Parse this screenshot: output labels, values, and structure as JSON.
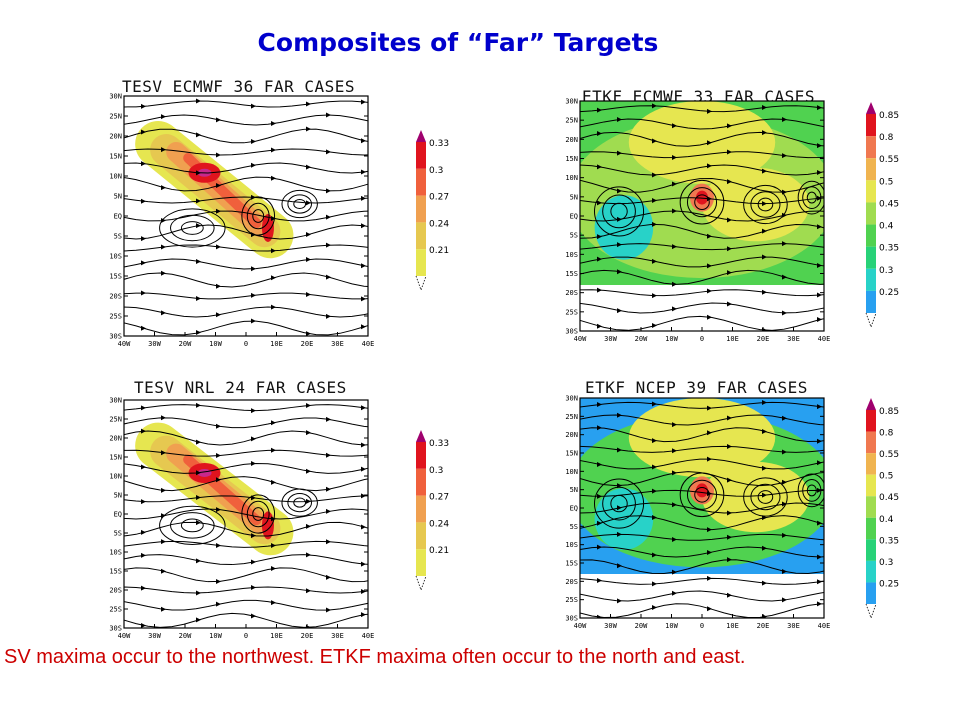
{
  "title": "Composites of “Far” Targets",
  "caption": "SV maxima occur to the northwest.  ETKF maxima often occur to the north and east.",
  "lat_labels": [
    "30N",
    "25N",
    "20N",
    "15N",
    "10N",
    "5N",
    "EQ",
    "5S",
    "10S",
    "15S",
    "20S",
    "25S",
    "30S"
  ],
  "lon_labels": [
    "40W",
    "30W",
    "20W",
    "10W",
    "0",
    "10E",
    "20E",
    "30E",
    "40E"
  ],
  "panels": [
    {
      "id": "tesv-ecmwf",
      "title": "TESV ECMWF 36 FAR CASES",
      "type": "tesv"
    },
    {
      "id": "etkf-ecmwf",
      "title": "ETKF ECMWF 33 FAR CASES",
      "type": "etkf"
    },
    {
      "id": "tesv-nrl",
      "title": "TESV NRL 24 FAR CASES",
      "type": "tesv"
    },
    {
      "id": "etkf-ncep",
      "title": "ETKF NCEP 39 FAR CASES",
      "type": "etkf"
    }
  ],
  "tesv_scale": {
    "labels": [
      "0.33",
      "0.3",
      "0.27",
      "0.24",
      "0.21"
    ],
    "colors": [
      "#e0141e",
      "#f0603c",
      "#f0a050",
      "#e6c850",
      "#e6e650"
    ]
  },
  "etkf_scale": {
    "labels": [
      "0.85",
      "0.8",
      "0.55",
      "0.5",
      "0.45",
      "0.4",
      "0.35",
      "0.3",
      "0.25"
    ],
    "colors": [
      "#e0141e",
      "#f07850",
      "#f0b450",
      "#e6e650",
      "#a0dc50",
      "#50d250",
      "#28d278",
      "#28d2c8",
      "#28a0f0"
    ]
  },
  "colors": {
    "title": "#0000cc",
    "caption": "#cc0000",
    "tip": "#a0006e"
  }
}
